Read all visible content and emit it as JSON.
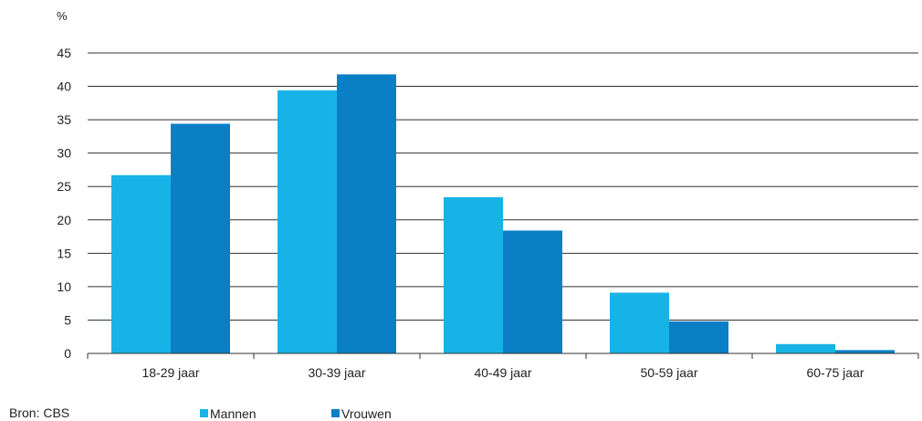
{
  "chart_data": {
    "type": "bar",
    "ylabel": "%",
    "ylim": [
      0,
      45
    ],
    "yticks": [
      0,
      5,
      10,
      15,
      20,
      25,
      30,
      35,
      40,
      45
    ],
    "grid": true,
    "legend_position": "bottom",
    "categories": [
      "18-29 jaar",
      "30-39 jaar",
      "40-49 jaar",
      "50-59 jaar",
      "60-75 jaar"
    ],
    "series": [
      {
        "name": "Mannen",
        "color": "#17b3e6",
        "values": [
          26.7,
          39.4,
          23.4,
          9.1,
          1.4
        ]
      },
      {
        "name": "Vrouwen",
        "color": "#0a7fc6",
        "values": [
          34.4,
          41.8,
          18.4,
          4.8,
          0.5
        ]
      }
    ],
    "source": "Bron: CBS"
  }
}
